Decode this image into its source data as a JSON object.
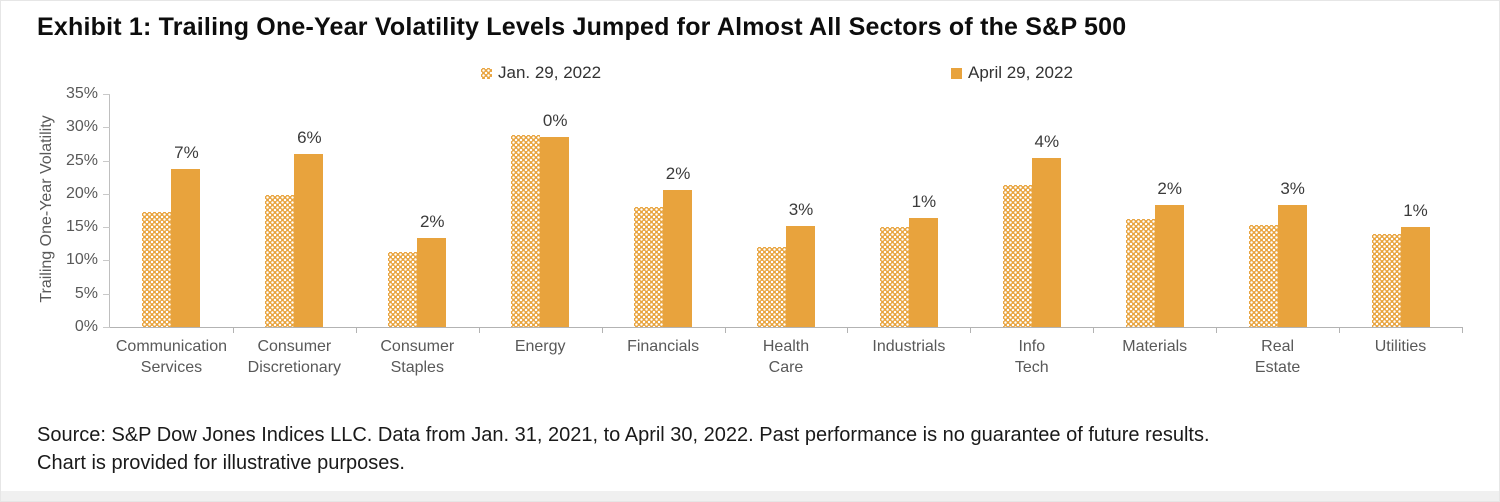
{
  "page": {
    "title": "Exhibit 1: Trailing One-Year Volatility Levels Jumped for Almost All Sectors of the S&P 500",
    "source_line1": "Source: S&P Dow Jones Indices LLC. Data from Jan. 31, 2021, to April 30, 2022. Past performance is no guarantee of future results.",
    "source_line2": "Chart is provided for illustrative purposes."
  },
  "colors": {
    "bar_orange": "#E8A33D",
    "axis_line": "#B3B3B3",
    "tick_label": "#595959",
    "data_label": "#3B3B3B",
    "title_text": "#0D0D0D"
  },
  "chart_data": {
    "type": "bar",
    "categories": [
      "Communication\nServices",
      "Consumer\nDiscretionary",
      "Consumer\nStaples",
      "Energy",
      "Financials",
      "Health\nCare",
      "Industrials",
      "Info\nTech",
      "Materials",
      "Real\nEstate",
      "Utilities"
    ],
    "series": [
      {
        "name": "Jan. 29, 2022",
        "style": "pattern",
        "values": [
          17.3,
          19.8,
          11.2,
          28.8,
          18.1,
          12.0,
          15.0,
          21.4,
          16.2,
          15.3,
          13.9
        ]
      },
      {
        "name": "April 29, 2022",
        "style": "solid",
        "values": [
          23.8,
          26.0,
          13.3,
          28.6,
          20.6,
          15.2,
          16.4,
          25.4,
          18.4,
          18.3,
          15.0
        ]
      }
    ],
    "bar_labels": [
      "7%",
      "6%",
      "2%",
      "0%",
      "2%",
      "3%",
      "1%",
      "4%",
      "2%",
      "3%",
      "1%"
    ],
    "ylabel": "Trailing One-Year Volatility",
    "ylim": [
      0,
      35
    ],
    "y_tick_step": 5,
    "y_tick_labels": [
      "0%",
      "5%",
      "10%",
      "15%",
      "20%",
      "25%",
      "30%",
      "35%"
    ],
    "legend_position": "top",
    "grid": false
  }
}
